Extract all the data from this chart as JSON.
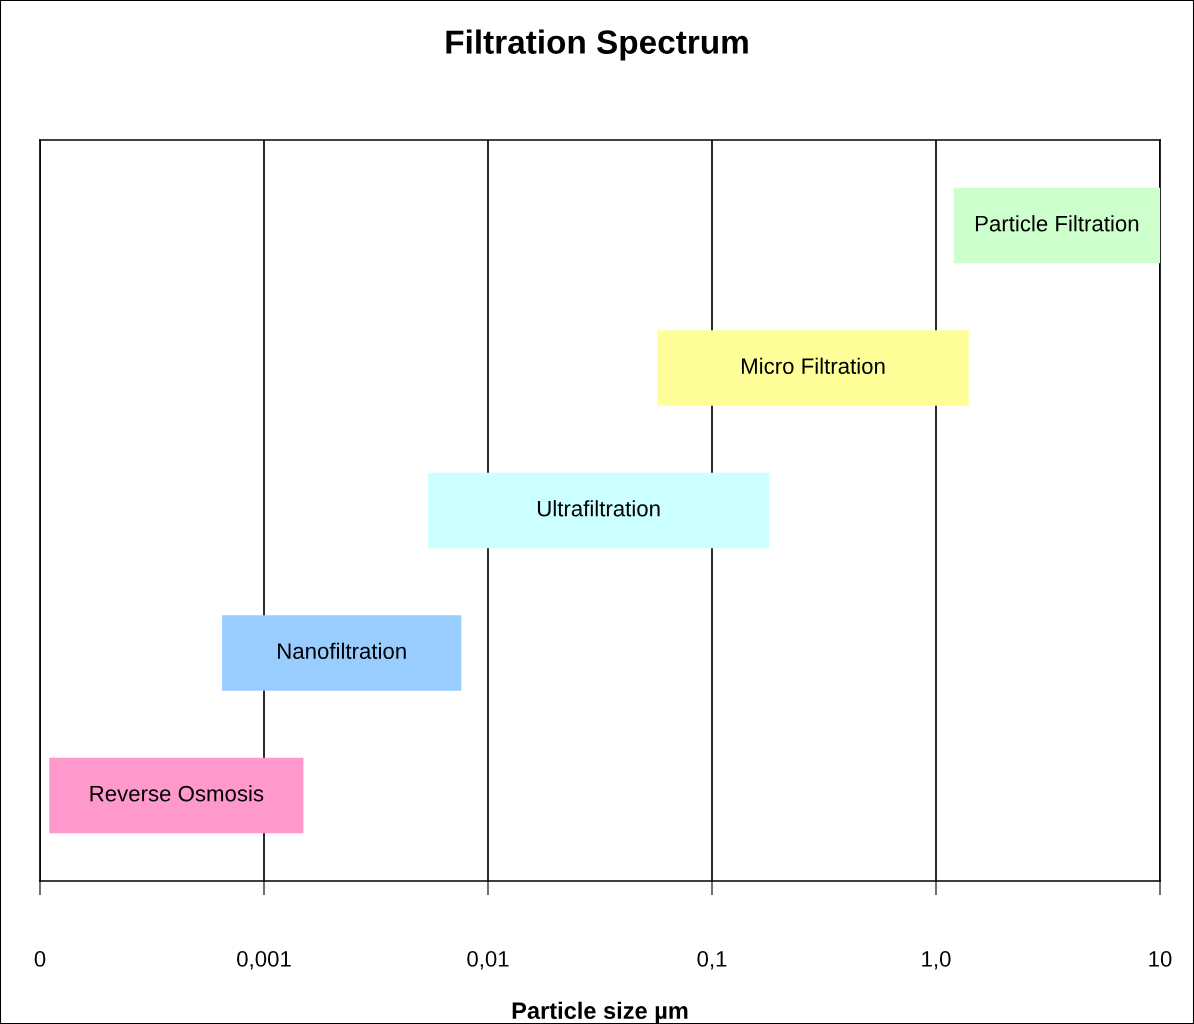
{
  "chart_data": {
    "type": "bar",
    "title": "Filtration Spectrum",
    "xlabel": "Particle size µm",
    "orientation": "horizontal",
    "log": "x",
    "categories": [
      "Particle Filtration",
      "Micro Filtration",
      "Ultrafiltration",
      "Nanofiltration",
      "Reverse Osmosis"
    ],
    "base": [
      1.2,
      0.057,
      0.0054,
      0.00065,
      0.00011
    ],
    "values": [
      8.8,
      1.343,
      0.1746,
      0.00695,
      0.00139
    ],
    "colors": [
      "#ccffcc",
      "#ffff99",
      "#ccffff",
      "#99ccff",
      "#ff99cc"
    ],
    "xlim": [
      0.0001,
      10
    ],
    "xticks": [
      {
        "value": 0.0001,
        "label": "0"
      },
      {
        "value": 0.001,
        "label": "0,001"
      },
      {
        "value": 0.01,
        "label": "0,01"
      },
      {
        "value": 0.1,
        "label": "0,1"
      },
      {
        "value": 1,
        "label": "1,0"
      },
      10
    ],
    "grid": "x",
    "tick_labels": "x"
  }
}
